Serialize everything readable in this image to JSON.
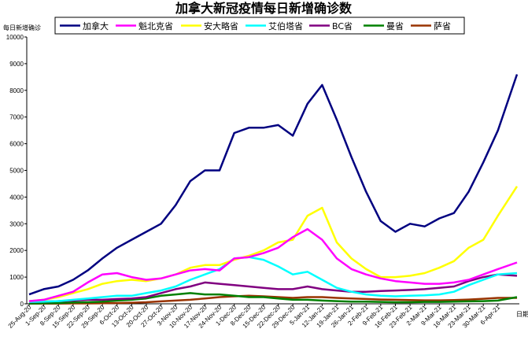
{
  "chart_data": {
    "type": "line",
    "title": "加拿大新冠疫情每日新增确诊数",
    "ylabel": "每日新增确诊",
    "xlabel": "日期",
    "ylim": [
      0,
      10000
    ],
    "yticks": [
      0,
      1000,
      2000,
      3000,
      4000,
      5000,
      6000,
      7000,
      8000,
      9000,
      10000
    ],
    "legend_position": "top",
    "grid": false,
    "x_tick_labels": [
      "25-Aug-20",
      "1-Sep-20",
      "8-Sep-20",
      "15-Sep-20",
      "22-Sep-20",
      "29-Sep-20",
      "6-Oct-20",
      "13-Oct-20",
      "20-Oct-20",
      "27-Oct-20",
      "3-Nov-20",
      "10-Nov-20",
      "17-Nov-20",
      "24-Nov-20",
      "1-Dec-20",
      "8-Dec-20",
      "15-Dec-20",
      "22-Dec-20",
      "29-Dec-20",
      "5-Jan-21",
      "12-Jan-21",
      "19-Jan-21",
      "26-Jan-21",
      "2-Feb-21",
      "9-Feb-21",
      "16-Feb-21",
      "23-Feb-21",
      "2-Mar-21",
      "9-Mar-21",
      "16-Mar-21",
      "23-Mar-21",
      "30-Mar-21",
      "6-Apr-21"
    ],
    "x_week_values": [
      0,
      1,
      2,
      3,
      4,
      5,
      6,
      7,
      8,
      9,
      10,
      11,
      12,
      13,
      14,
      15,
      16,
      17,
      18,
      19,
      20,
      21,
      22,
      23,
      24,
      25,
      26,
      27,
      28,
      29,
      30,
      31,
      32,
      33.3
    ],
    "series": [
      {
        "name": "加拿大",
        "color": "#000080",
        "values": [
          350,
          550,
          650,
          900,
          1250,
          1700,
          2100,
          2400,
          2700,
          3000,
          3700,
          4600,
          5000,
          5000,
          6400,
          6600,
          6600,
          6700,
          6300,
          7500,
          8200,
          6900,
          5500,
          4200,
          3100,
          2700,
          3000,
          2900,
          3200,
          3400,
          4200,
          5300,
          6500,
          8600
        ]
      },
      {
        "name": "魁北克省",
        "color": "#ff00ff",
        "values": [
          100,
          150,
          300,
          450,
          800,
          1100,
          1150,
          1000,
          900,
          950,
          1100,
          1250,
          1300,
          1250,
          1700,
          1750,
          1900,
          2100,
          2500,
          2800,
          2400,
          1700,
          1300,
          1100,
          950,
          850,
          800,
          750,
          750,
          800,
          900,
          1100,
          1300,
          1550
        ]
      },
      {
        "name": "安大略省",
        "color": "#ffff00",
        "values": [
          100,
          150,
          250,
          400,
          550,
          750,
          850,
          900,
          850,
          950,
          1100,
          1350,
          1450,
          1450,
          1650,
          1800,
          2000,
          2300,
          2400,
          3300,
          3600,
          2300,
          1700,
          1300,
          1000,
          1000,
          1050,
          1150,
          1350,
          1600,
          2100,
          2400,
          3300,
          4400
        ]
      },
      {
        "name": "艾伯塔省",
        "color": "#00ffff",
        "values": [
          70,
          80,
          100,
          150,
          200,
          250,
          300,
          300,
          400,
          500,
          650,
          900,
          1100,
          1300,
          1700,
          1750,
          1650,
          1400,
          1100,
          1200,
          900,
          600,
          450,
          350,
          300,
          280,
          300,
          320,
          350,
          450,
          700,
          900,
          1100,
          1150
        ]
      },
      {
        "name": "BC省",
        "color": "#800080",
        "values": [
          60,
          80,
          100,
          120,
          150,
          150,
          180,
          200,
          250,
          400,
          550,
          650,
          800,
          750,
          700,
          650,
          600,
          550,
          550,
          650,
          550,
          500,
          450,
          450,
          480,
          500,
          520,
          550,
          600,
          650,
          850,
          1000,
          1100,
          1050
        ]
      },
      {
        "name": "曼省",
        "color": "#008000",
        "values": [
          10,
          20,
          30,
          50,
          60,
          80,
          120,
          150,
          200,
          300,
          350,
          400,
          350,
          350,
          300,
          250,
          250,
          200,
          150,
          150,
          120,
          100,
          80,
          80,
          70,
          60,
          60,
          70,
          70,
          80,
          90,
          100,
          120,
          250
        ]
      },
      {
        "name": "萨省",
        "color": "#993300",
        "values": [
          5,
          10,
          10,
          15,
          15,
          20,
          30,
          40,
          60,
          90,
          120,
          150,
          200,
          250,
          280,
          300,
          280,
          250,
          220,
          250,
          250,
          220,
          200,
          180,
          160,
          150,
          140,
          130,
          130,
          140,
          160,
          190,
          220,
          220
        ]
      }
    ]
  }
}
